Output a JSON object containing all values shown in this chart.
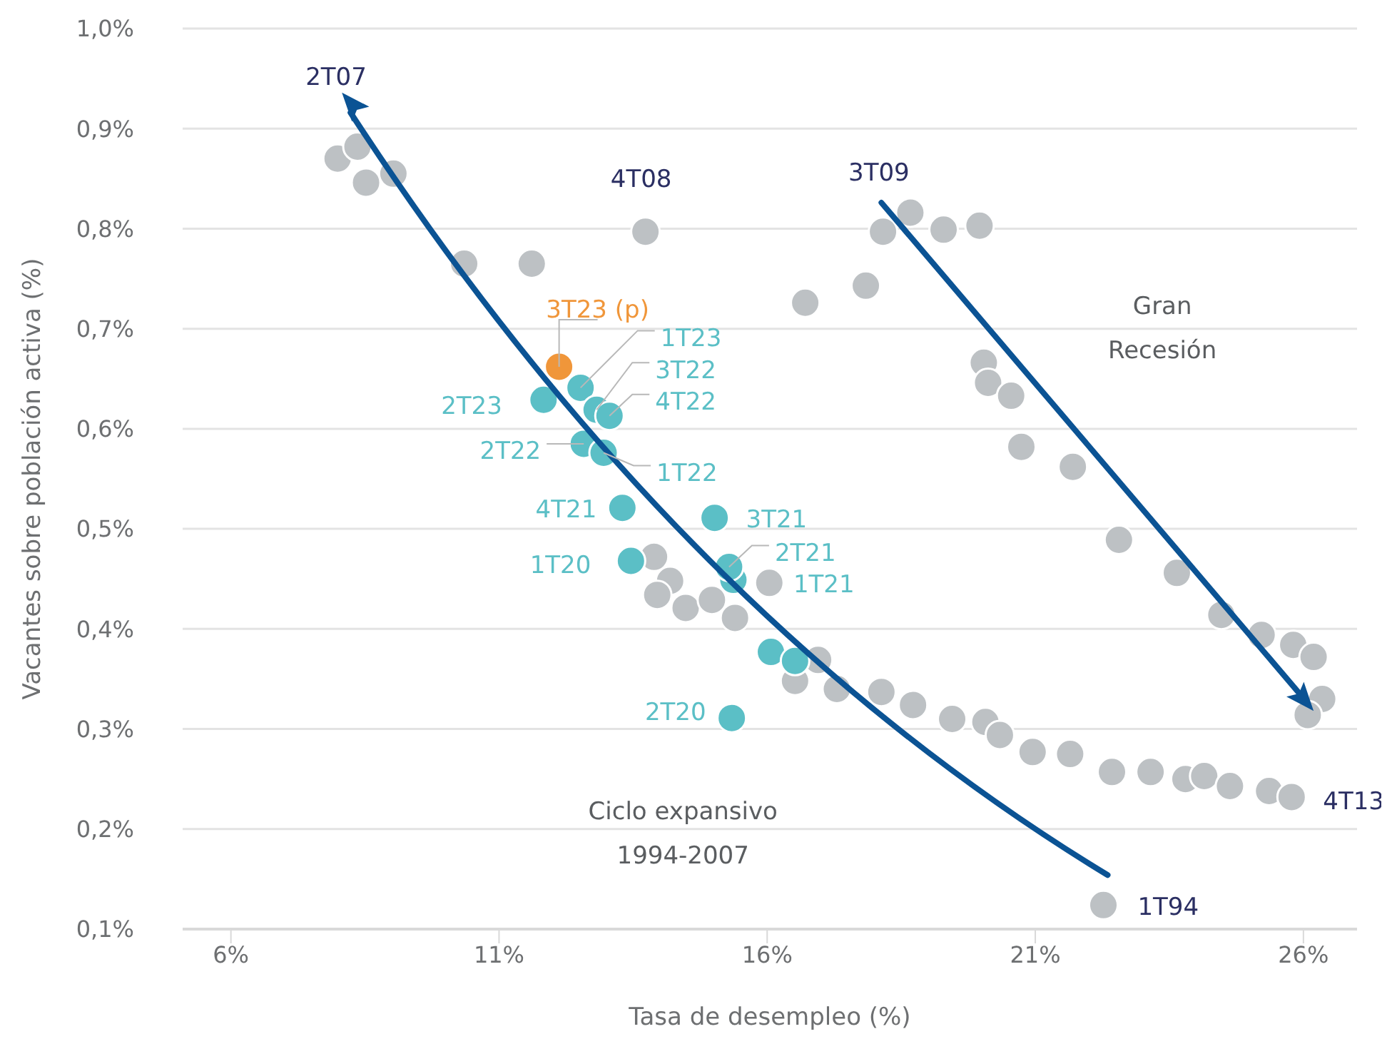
{
  "chart_data": {
    "type": "scatter",
    "xlabel": "Tasa de desempleo (%)",
    "ylabel": "Vacantes sobre población activa (%)",
    "xlim": [
      5.1,
      27
    ],
    "ylim": [
      0.1,
      1.0
    ],
    "xticks": [
      {
        "value": 6,
        "label": "6%"
      },
      {
        "value": 11,
        "label": "11%"
      },
      {
        "value": 16,
        "label": "16%"
      },
      {
        "value": 21,
        "label": "21%"
      },
      {
        "value": 26,
        "label": "26%"
      }
    ],
    "yticks": [
      {
        "value": 0.1,
        "label": "0,1%"
      },
      {
        "value": 0.2,
        "label": "0,2%"
      },
      {
        "value": 0.3,
        "label": "0,3%"
      },
      {
        "value": 0.4,
        "label": "0,4%"
      },
      {
        "value": 0.5,
        "label": "0,5%"
      },
      {
        "value": 0.6,
        "label": "0,6%"
      },
      {
        "value": 0.7,
        "label": "0,7%"
      },
      {
        "value": 0.8,
        "label": "0,8%"
      },
      {
        "value": 0.9,
        "label": "0,9%"
      },
      {
        "value": 1.0,
        "label": "1,0%"
      }
    ],
    "grid": "y",
    "legend": false,
    "marker": "circle",
    "series": [
      {
        "color": "#bdc1c4",
        "x": [
          7.99,
          8.36,
          8.52,
          9.03,
          10.35,
          11.61,
          13.73,
          16.71,
          17.84,
          18.16,
          18.67,
          19.29,
          19.96,
          20.04,
          20.12,
          20.55,
          20.74,
          21.7,
          22.56,
          23.64,
          24.47,
          25.22,
          25.81,
          26.19,
          26.35,
          26.08,
          16.52,
          17.3,
          16.95,
          18.13,
          18.72,
          19.45,
          20.07,
          20.34,
          20.95,
          21.65,
          22.43,
          23.15,
          23.8,
          24.15,
          24.63,
          25.36,
          25.78,
          22.27,
          13.89,
          14.19,
          13.95,
          14.48,
          14.97,
          15.4,
          16.04
        ],
        "values": [
          0.87,
          0.882,
          0.846,
          0.855,
          0.765,
          0.765,
          0.797,
          0.726,
          0.743,
          0.797,
          0.816,
          0.799,
          0.803,
          0.666,
          0.646,
          0.633,
          0.582,
          0.562,
          0.489,
          0.456,
          0.414,
          0.394,
          0.384,
          0.372,
          0.33,
          0.314,
          0.348,
          0.34,
          0.369,
          0.337,
          0.324,
          0.31,
          0.307,
          0.294,
          0.277,
          0.275,
          0.257,
          0.257,
          0.25,
          0.253,
          0.243,
          0.238,
          0.232,
          0.124,
          0.472,
          0.448,
          0.434,
          0.421,
          0.429,
          0.411,
          0.446
        ]
      },
      {
        "color": "#5bbfc6",
        "x": [
          12.52,
          11.83,
          12.82,
          13.06,
          12.58,
          12.95,
          13.3,
          15.02,
          15.37,
          15.29,
          13.46,
          15.34,
          16.07,
          16.52
        ],
        "values": [
          0.641,
          0.629,
          0.619,
          0.613,
          0.585,
          0.576,
          0.521,
          0.511,
          0.449,
          0.462,
          0.468,
          0.311,
          0.377,
          0.368
        ]
      },
      {
        "color": "#f0963a",
        "x": [
          12.12
        ],
        "values": [
          0.662
        ]
      }
    ],
    "annotations": [
      {
        "text": "2T07",
        "x": 8.36,
        "y": 0.882
      },
      {
        "text": "4T08",
        "x": 13.73,
        "y": 0.797
      },
      {
        "text": "3T09",
        "x": 18.67,
        "y": 0.816
      },
      {
        "text": "4T13",
        "x": 25.78,
        "y": 0.232
      },
      {
        "text": "1T94",
        "x": 22.27,
        "y": 0.124
      },
      {
        "text": "3T23 (p)",
        "x": 12.12,
        "y": 0.662
      },
      {
        "text": "1T23",
        "x": 12.52,
        "y": 0.641
      },
      {
        "text": "3T22",
        "x": 12.82,
        "y": 0.619
      },
      {
        "text": "4T22",
        "x": 13.06,
        "y": 0.613
      },
      {
        "text": "2T23",
        "x": 11.83,
        "y": 0.629
      },
      {
        "text": "2T22",
        "x": 12.58,
        "y": 0.585
      },
      {
        "text": "1T22",
        "x": 12.95,
        "y": 0.576
      },
      {
        "text": "4T21",
        "x": 13.3,
        "y": 0.521
      },
      {
        "text": "3T21",
        "x": 15.02,
        "y": 0.511
      },
      {
        "text": "2T21",
        "x": 15.29,
        "y": 0.462
      },
      {
        "text": "1T21",
        "x": 15.37,
        "y": 0.449
      },
      {
        "text": "1T20",
        "x": 13.46,
        "y": 0.468
      },
      {
        "text": "2T20",
        "x": 15.34,
        "y": 0.311
      },
      "Gran\nRecesión",
      "Ciclo expansivo\n1994-2007"
    ]
  }
}
